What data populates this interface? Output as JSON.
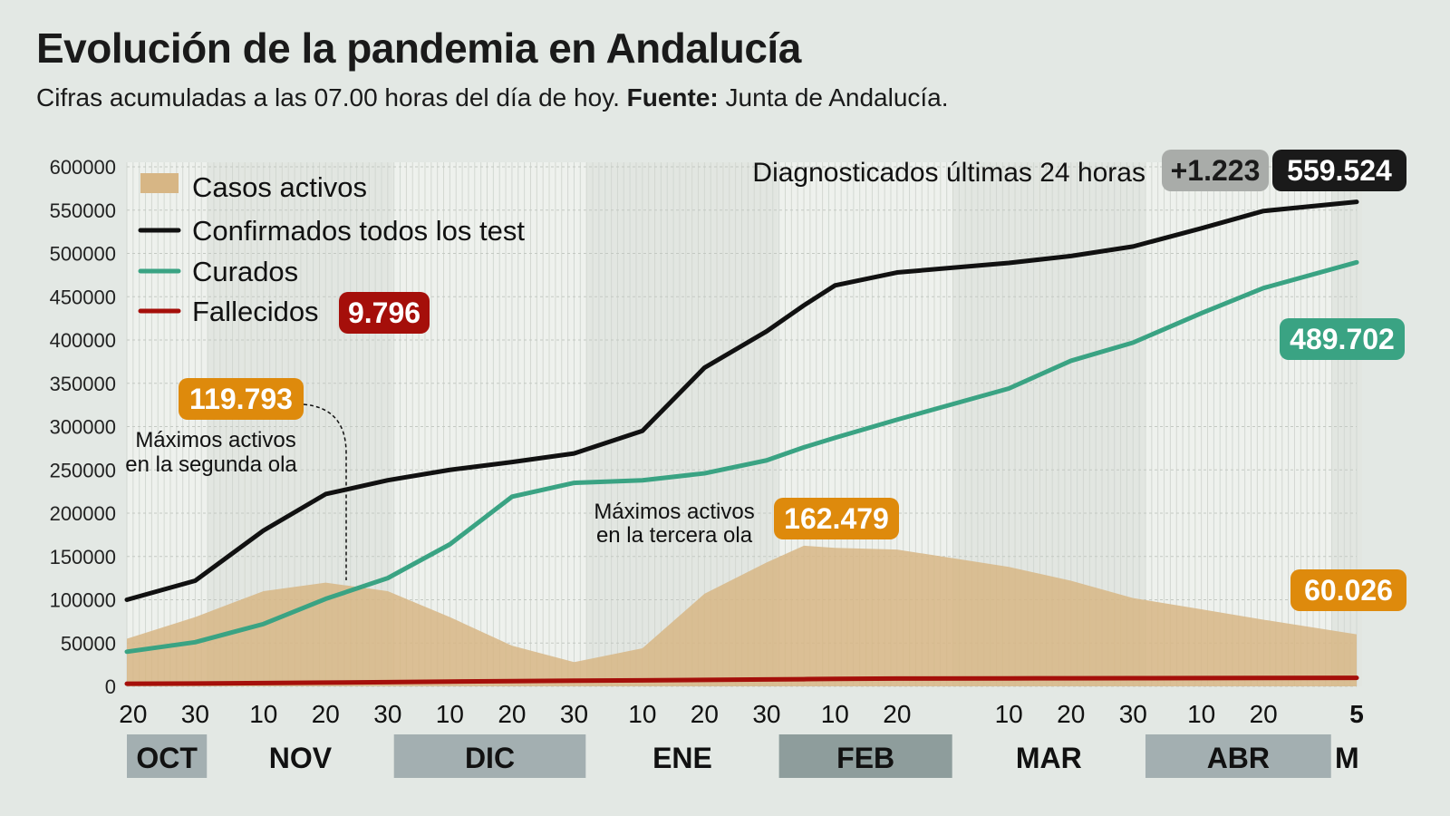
{
  "title": "Evolución de la pandemia en Andalucía",
  "subtitle": {
    "text": "Cifras acumuladas a las 07.00 horas del día de hoy.",
    "source_label": "Fuente:",
    "source": "Junta de Andalucía."
  },
  "colors": {
    "active": "#d7b685",
    "confirmed": "#111111",
    "cured": "#3aa383",
    "deaths": "#a50f0a",
    "orange": "#de8a0c",
    "background": "#e3e8e4"
  },
  "chart_data": {
    "type": "line",
    "ylim": [
      0,
      600000
    ],
    "yticks": [
      0,
      50000,
      100000,
      150000,
      200000,
      250000,
      300000,
      350000,
      400000,
      450000,
      500000,
      550000,
      600000
    ],
    "ytick_labels": [
      "0",
      "50000",
      "100000",
      "150000",
      "200000",
      "250000",
      "300000",
      "350000",
      "400000",
      "450000",
      "500000",
      "550000",
      "600000"
    ],
    "xlim": [
      "2020-10-19",
      "2021-05-05"
    ],
    "xticks": [
      {
        "date": "2020-10-20",
        "label": "20"
      },
      {
        "date": "2020-10-30",
        "label": "30"
      },
      {
        "date": "2020-11-10",
        "label": "10"
      },
      {
        "date": "2020-11-20",
        "label": "20"
      },
      {
        "date": "2020-11-30",
        "label": "30"
      },
      {
        "date": "2020-12-10",
        "label": "10"
      },
      {
        "date": "2020-12-20",
        "label": "20"
      },
      {
        "date": "2020-12-30",
        "label": "30"
      },
      {
        "date": "2021-01-10",
        "label": "10"
      },
      {
        "date": "2021-01-20",
        "label": "20"
      },
      {
        "date": "2021-01-30",
        "label": "30"
      },
      {
        "date": "2021-02-10",
        "label": "10"
      },
      {
        "date": "2021-02-20",
        "label": "20"
      },
      {
        "date": "2021-03-10",
        "label": "10"
      },
      {
        "date": "2021-03-20",
        "label": "20"
      },
      {
        "date": "2021-03-30",
        "label": "30"
      },
      {
        "date": "2021-04-10",
        "label": "10"
      },
      {
        "date": "2021-04-20",
        "label": "20"
      },
      {
        "date": "2021-05-05",
        "label": "5"
      }
    ],
    "months": [
      {
        "label": "OCT",
        "start": "2020-10-19",
        "end": "2020-10-31",
        "boxed": true
      },
      {
        "label": "NOV",
        "start": "2020-11-01",
        "end": "2020-11-30",
        "boxed": false
      },
      {
        "label": "DIC",
        "start": "2020-12-01",
        "end": "2020-12-31",
        "boxed": true
      },
      {
        "label": "ENE",
        "start": "2021-01-01",
        "end": "2021-01-31",
        "boxed": false
      },
      {
        "label": "FEB",
        "start": "2021-02-01",
        "end": "2021-02-28",
        "boxed": true
      },
      {
        "label": "MAR",
        "start": "2021-03-01",
        "end": "2021-03-31",
        "boxed": false
      },
      {
        "label": "ABR",
        "start": "2021-04-01",
        "end": "2021-04-30",
        "boxed": true
      },
      {
        "label": "M",
        "start": "2021-05-01",
        "end": "2021-05-05",
        "boxed": false
      }
    ],
    "dates": [
      "2020-10-19",
      "2020-10-30",
      "2020-11-10",
      "2020-11-20",
      "2020-11-30",
      "2020-12-10",
      "2020-12-20",
      "2020-12-30",
      "2021-01-10",
      "2021-01-20",
      "2021-01-30",
      "2021-02-05",
      "2021-02-10",
      "2021-02-20",
      "2021-03-10",
      "2021-03-20",
      "2021-03-30",
      "2021-04-10",
      "2021-04-20",
      "2021-05-05"
    ],
    "series": [
      {
        "name": "Casos activos",
        "key": "active",
        "type": "area",
        "values": [
          55000,
          80000,
          110000,
          119793,
          110000,
          80000,
          47000,
          28000,
          44000,
          107000,
          143000,
          162479,
          160000,
          158000,
          138000,
          122000,
          102000,
          89000,
          77000,
          60026
        ]
      },
      {
        "name": "Confirmados todos los test",
        "key": "confirmed",
        "type": "line",
        "values": [
          100000,
          122000,
          180000,
          222000,
          238000,
          250000,
          259000,
          269000,
          295000,
          368000,
          410000,
          440000,
          463000,
          478000,
          489000,
          497000,
          508000,
          529000,
          549000,
          559524
        ]
      },
      {
        "name": "Curados",
        "key": "cured",
        "type": "line",
        "values": [
          40000,
          51000,
          72000,
          101000,
          125000,
          164000,
          219000,
          235000,
          238000,
          246000,
          261000,
          276000,
          287000,
          308000,
          344000,
          376000,
          397000,
          431000,
          460000,
          489702
        ]
      },
      {
        "name": "Fallecidos",
        "key": "deaths",
        "type": "line",
        "values": [
          3000,
          3300,
          3800,
          4300,
          4900,
          5500,
          6000,
          6500,
          7000,
          7500,
          8000,
          8300,
          8600,
          9000,
          9200,
          9350,
          9450,
          9550,
          9650,
          9796
        ]
      }
    ],
    "legend": {
      "position": "top-left"
    }
  },
  "badges": {
    "deaths_total": "9.796",
    "cured_total": "489.702",
    "active_latest": "60.026",
    "confirmed_total": "559.524",
    "diagnosed_24h": "+1.223",
    "diagnosed_24h_label": "Diagnosticados últimas 24 horas"
  },
  "annotations": {
    "second_wave_value": "119.793",
    "second_wave_line1": "Máximos activos",
    "second_wave_line2": "en la segunda ola",
    "third_wave_value": "162.479",
    "third_wave_line1": "Máximos activos",
    "third_wave_line2": "en la tercera ola"
  }
}
